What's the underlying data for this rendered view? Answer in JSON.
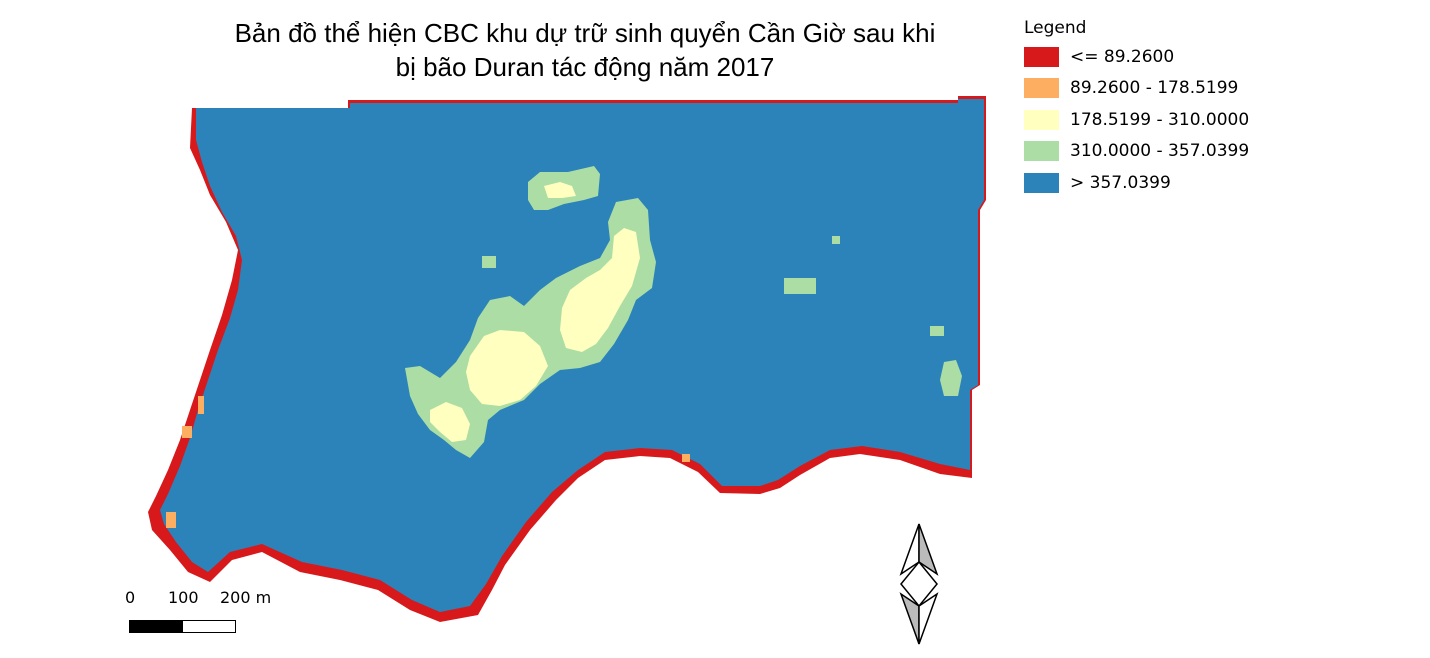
{
  "title": {
    "line1": "Bản đồ thể hiện CBC khu dự trữ sinh quyển Cần Giờ sau khi",
    "line2": "bị bão Duran tác động năm 2017"
  },
  "legend": {
    "title": "Legend",
    "items": [
      {
        "label": "<= 89.2600",
        "color": "#d7191c"
      },
      {
        "label": "89.2600 - 178.5199",
        "color": "#fdae61"
      },
      {
        "label": "178.5199 - 310.0000",
        "color": "#ffffc0"
      },
      {
        "label": "310.0000 - 357.0399",
        "color": "#abdda4"
      },
      {
        "label": "> 357.0399",
        "color": "#2b83ba"
      }
    ]
  },
  "scale_bar": {
    "labels": [
      "0",
      "100",
      "200 m"
    ]
  },
  "colors": {
    "water_class": "#2b83ba",
    "edge_class": "#d7191c",
    "mid_class": "#abdda4",
    "light_class": "#ffffc0",
    "orange_class": "#fdae61"
  },
  "icons": {
    "north_arrow": "north-arrow-icon"
  }
}
